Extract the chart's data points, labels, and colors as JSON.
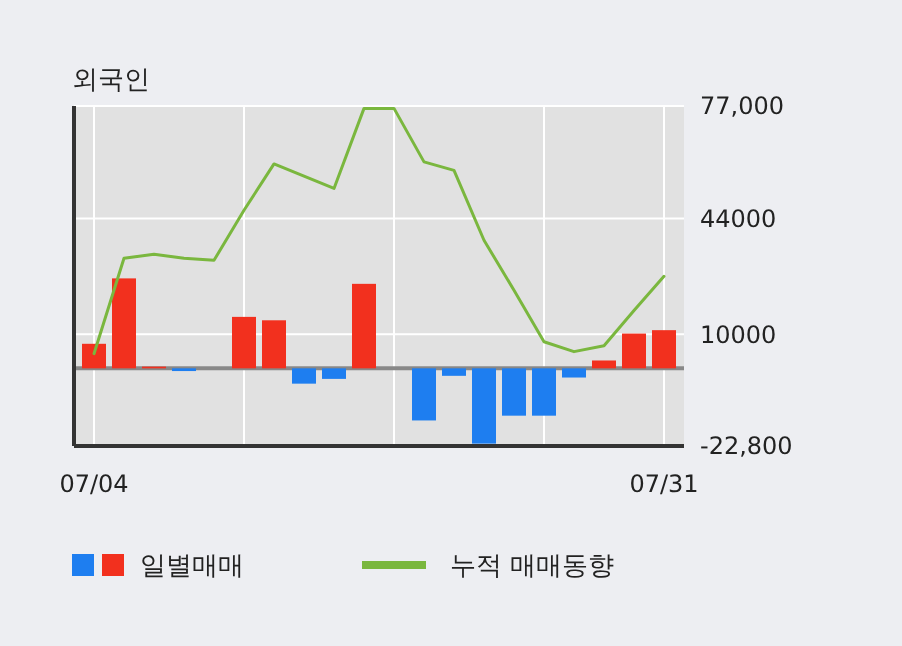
{
  "chart_data": {
    "type": "bar",
    "title": "외국인",
    "categories": [
      "07/04",
      null,
      null,
      null,
      null,
      null,
      null,
      null,
      null,
      null,
      null,
      null,
      null,
      null,
      null,
      null,
      null,
      null,
      null,
      "07/31"
    ],
    "series": [
      {
        "name": "일별매매",
        "colors": [
          "#f2301e",
          "#f2301e",
          "#f2301e",
          "#1e7ef0",
          "#f2301e",
          "#f2301e",
          "#f2301e",
          "#1e7ef0",
          "#1e7ef0",
          "#f2301e",
          "#f2301e",
          "#1e7ef0",
          "#1e7ef0",
          "#1e7ef0",
          "#1e7ef0",
          "#1e7ef0",
          "#1e7ef0",
          "#f2301e",
          "#f2301e",
          "#f2301e"
        ],
        "values": [
          7200,
          26400,
          500,
          -800,
          0,
          15100,
          14100,
          -4500,
          -3100,
          24800,
          0,
          -15300,
          -2200,
          -22100,
          -13900,
          -13900,
          -2700,
          2300,
          10200,
          11200
        ]
      },
      {
        "name": "누적 매매동향",
        "type": "line",
        "color": "#7ab73e",
        "values": [
          4300,
          32300,
          33500,
          32300,
          31700,
          46400,
          60000,
          56400,
          52800,
          76300,
          76300,
          60600,
          58100,
          37600,
          22900,
          7800,
          4900,
          6600,
          17000,
          27000
        ]
      }
    ],
    "ylim": [
      -22800,
      77000
    ],
    "yticks": [
      {
        "value": 77000,
        "label": "77,000"
      },
      44000,
      10000,
      {
        "value": -22800,
        "label": "-22,800"
      }
    ],
    "grid": true,
    "legend": "bottom"
  }
}
